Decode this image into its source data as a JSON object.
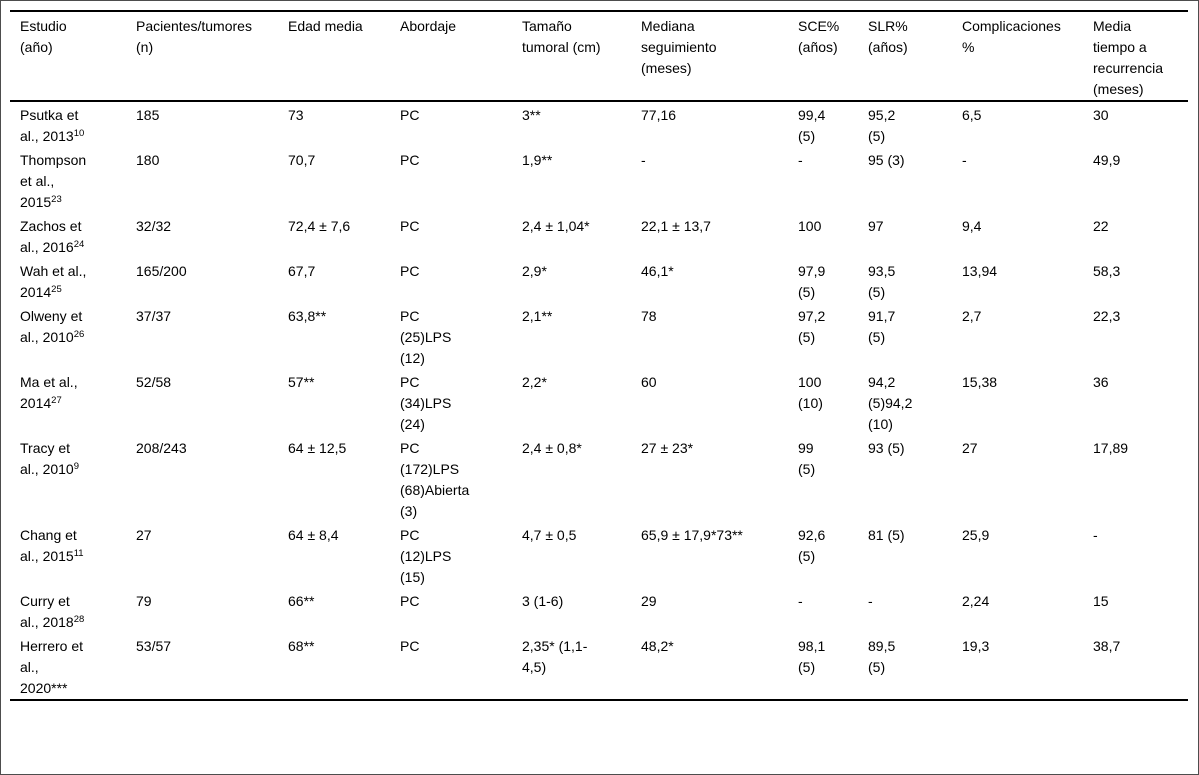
{
  "colors": {
    "rule": "#000000",
    "frame": "#4d4d4d",
    "text": "#000000",
    "background": "#ffffff"
  },
  "table": {
    "columns": [
      "Estudio (año)",
      "Pacientes/tumores (n)",
      "Edad media",
      "Abordaje",
      "Tamaño tumoral (cm)",
      "Mediana seguimiento (meses)",
      "SCE% (años)",
      "SLR% (años)",
      "Complicaciones %",
      "Media tiempo a recurrencia (meses)"
    ],
    "rows": [
      {
        "study": "Psutka et al., 2013",
        "ref": "10",
        "cells": [
          "185",
          "73",
          "PC",
          "3**",
          "77,16",
          "99,4 (5)",
          "95,2 (5)",
          "6,5",
          "30"
        ]
      },
      {
        "study": "Thompson et al., 2015",
        "ref": "23",
        "cells": [
          "180",
          "70,7",
          "PC",
          "1,9**",
          "-",
          "-",
          "95 (3)",
          "-",
          "49,9"
        ]
      },
      {
        "study": "Zachos et al., 2016",
        "ref": "24",
        "cells": [
          "32/32",
          "72,4 ± 7,6",
          "PC",
          "2,4 ± 1,04*",
          "22,1 ± 13,7",
          "100",
          "97",
          "9,4",
          "22"
        ]
      },
      {
        "study": "Wah et al., 2014",
        "ref": "25",
        "cells": [
          "165/200",
          "67,7",
          "PC",
          "2,9*",
          "46,1*",
          "97,9 (5)",
          "93,5 (5)",
          "13,94",
          "58,3"
        ]
      },
      {
        "study": "Olweny et al., 2010",
        "ref": "26",
        "cells": [
          "37/37",
          "63,8**",
          "PC (25)LPS (12)",
          "2,1**",
          "78",
          "97,2 (5)",
          "91,7 (5)",
          "2,7",
          "22,3"
        ]
      },
      {
        "study": "Ma et al., 2014",
        "ref": "27",
        "cells": [
          "52/58",
          "57**",
          "PC (34)LPS (24)",
          "2,2*",
          "60",
          "100 (10)",
          "94,2 (5)94,2 (10)",
          "15,38",
          "36"
        ]
      },
      {
        "study": "Tracy et al., 2010",
        "ref": "9",
        "cells": [
          "208/243",
          "64 ± 12,5",
          "PC (172)LPS (68)Abierta (3)",
          "2,4 ± 0,8*",
          "27 ± 23*",
          "99 (5)",
          "93 (5)",
          "27",
          "17,89"
        ]
      },
      {
        "study": "Chang et al., 2015",
        "ref": "11",
        "cells": [
          "27",
          "64 ± 8,4",
          "PC (12)LPS (15)",
          "4,7 ± 0,5",
          "65,9 ± 17,9*73**",
          "92,6 (5)",
          "81 (5)",
          "25,9",
          "-"
        ]
      },
      {
        "study": "Curry et al., 2018",
        "ref": "28",
        "cells": [
          "79",
          "66**",
          "PC",
          "3 (1-6)",
          "29",
          "-",
          "-",
          "2,24",
          "15"
        ]
      },
      {
        "study": "Herrero et al., 2020***",
        "ref": "",
        "cells": [
          "53/57",
          "68**",
          "PC",
          "2,35* (1,1-4,5)",
          "48,2*",
          "98,1 (5)",
          "89,5 (5)",
          "19,3",
          "38,7"
        ]
      }
    ]
  }
}
